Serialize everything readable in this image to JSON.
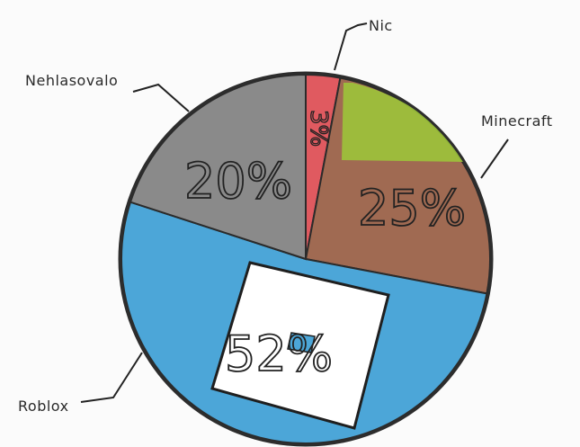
{
  "chart_data": {
    "type": "pie",
    "title": "",
    "slices": [
      {
        "label": "Nic",
        "value": 3,
        "display": "3%",
        "color": "#e05a60"
      },
      {
        "label": "Minecraft",
        "value": 25,
        "display": "25%",
        "color": "#a06a52"
      },
      {
        "label": "Roblox",
        "value": 52,
        "display": "52%",
        "color": "#4ca6d8"
      },
      {
        "label": "Nehlasovalo",
        "value": 20,
        "display": "20%",
        "color": "#8a8a8a"
      }
    ],
    "minecraft_top_color": "#9cc43a",
    "roblox_icon_color": "#ffffff"
  }
}
